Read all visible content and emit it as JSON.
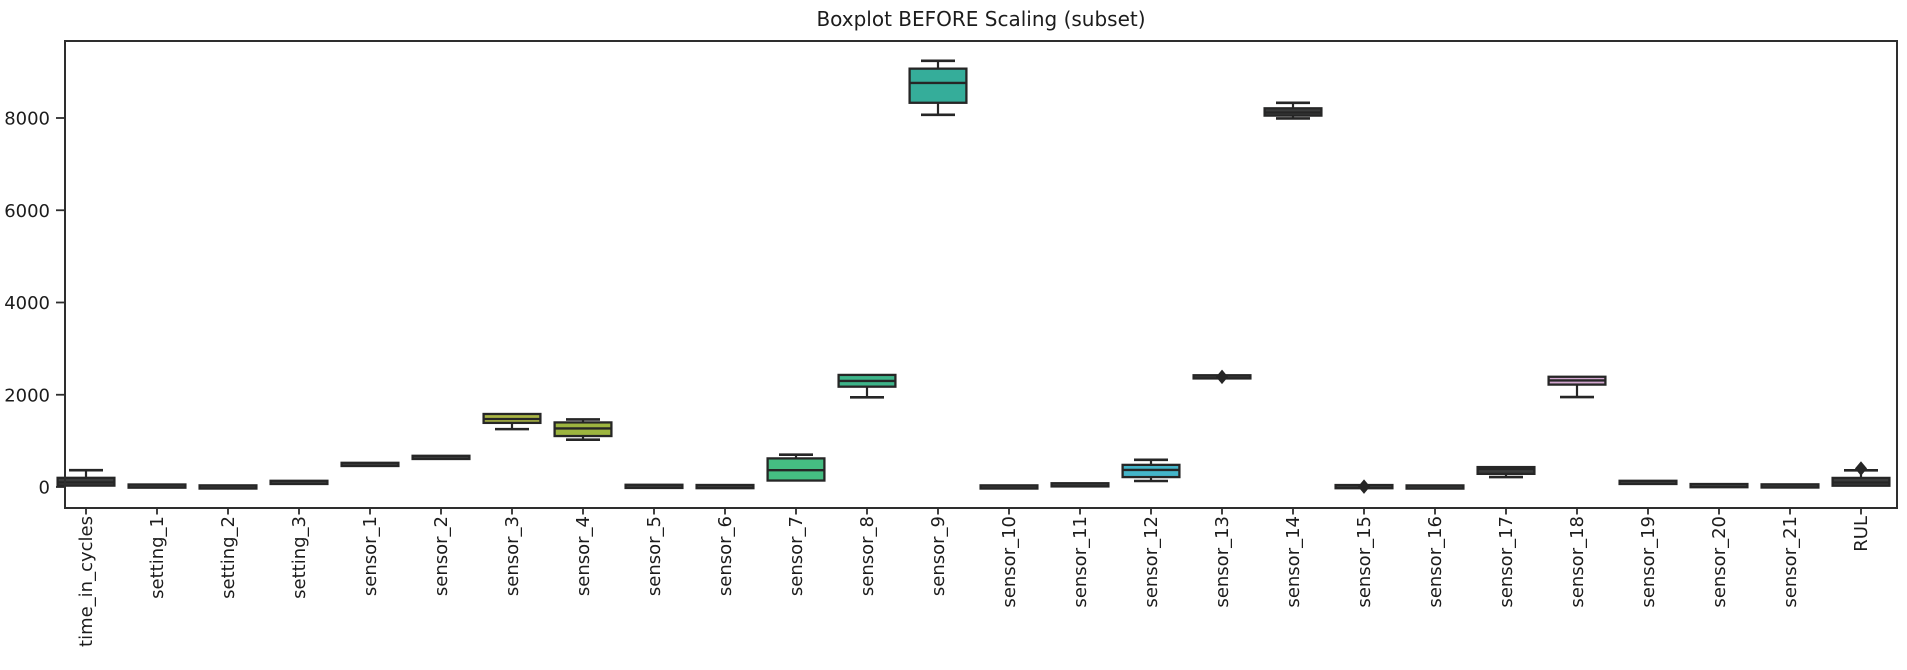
{
  "figure": {
    "background": "#ffffff",
    "axis_color": "#2e2e2e",
    "box_edge_color": "#262626",
    "flat_box_color": "#3b3c3c",
    "text_color": "#1c1c1c"
  },
  "chart_data": {
    "type": "boxplot",
    "title": "Boxplot BEFORE Scaling (subset)",
    "xlabel": "",
    "ylabel": "",
    "ylim": [
      -455,
      9670
    ],
    "yticks": [
      0,
      2000,
      4000,
      6000,
      8000
    ],
    "grid": false,
    "legend": "none",
    "categories": [
      "time_in_cycles",
      "setting_1",
      "setting_2",
      "setting_3",
      "sensor_1",
      "sensor_2",
      "sensor_3",
      "sensor_4",
      "sensor_5",
      "sensor_6",
      "sensor_7",
      "sensor_8",
      "sensor_9",
      "sensor_10",
      "sensor_11",
      "sensor_12",
      "sensor_13",
      "sensor_14",
      "sensor_15",
      "sensor_16",
      "sensor_17",
      "sensor_18",
      "sensor_19",
      "sensor_20",
      "sensor_21",
      "RUL"
    ],
    "series": [
      {
        "name": "time_in_cycles",
        "whislo": 1,
        "q1": 30,
        "med": 100,
        "q3": 199,
        "whishi": 365,
        "fliers": [],
        "color": "#3b3c3c"
      },
      {
        "name": "setting_1",
        "whislo": 0,
        "q1": 14,
        "med": 20,
        "q3": 26,
        "whishi": 40,
        "fliers": [],
        "color": "#3b3c3c"
      },
      {
        "name": "setting_2",
        "whislo": 0,
        "q1": 0,
        "med": 1,
        "q3": 2,
        "whishi": 2,
        "fliers": [],
        "color": "#3b3c3c"
      },
      {
        "name": "setting_3",
        "whislo": 100,
        "q1": 100,
        "med": 100,
        "q3": 100,
        "whishi": 100,
        "fliers": [],
        "color": "#3b3c3c"
      },
      {
        "name": "sensor_1",
        "whislo": 490,
        "q1": 490,
        "med": 490,
        "q3": 490,
        "whishi": 490,
        "fliers": [],
        "color": "#3b3c3c"
      },
      {
        "name": "sensor_2",
        "whislo": 640,
        "q1": 640,
        "med": 642,
        "q3": 644,
        "whishi": 645,
        "fliers": [],
        "color": "#3b3c3c"
      },
      {
        "name": "sensor_3",
        "whislo": 1255,
        "q1": 1390,
        "med": 1475,
        "q3": 1583,
        "whishi": 1625,
        "fliers": [],
        "color": "#a9b544"
      },
      {
        "name": "sensor_4",
        "whislo": 1025,
        "q1": 1105,
        "med": 1270,
        "q3": 1400,
        "whishi": 1465,
        "fliers": [],
        "color": "#9db53f"
      },
      {
        "name": "sensor_5",
        "whislo": 14,
        "q1": 14,
        "med": 14,
        "q3": 14,
        "whishi": 14,
        "fliers": [],
        "color": "#3b3c3c"
      },
      {
        "name": "sensor_6",
        "whislo": 9,
        "q1": 9,
        "med": 9,
        "q3": 9,
        "whishi": 9,
        "fliers": [],
        "color": "#3b3c3c"
      },
      {
        "name": "sensor_7",
        "whislo": 95,
        "q1": 140,
        "med": 365,
        "q3": 620,
        "whishi": 700,
        "fliers": [],
        "color": "#45bd82"
      },
      {
        "name": "sensor_8",
        "whislo": 1945,
        "q1": 2175,
        "med": 2300,
        "q3": 2430,
        "whishi": 2470,
        "fliers": [],
        "color": "#3db489"
      },
      {
        "name": "sensor_9",
        "whislo": 8070,
        "q1": 8330,
        "med": 8760,
        "q3": 9070,
        "whishi": 9240,
        "fliers": [],
        "color": "#35ad9a"
      },
      {
        "name": "sensor_10",
        "whislo": 1,
        "q1": 1,
        "med": 1,
        "q3": 1,
        "whishi": 1,
        "fliers": [],
        "color": "#3b3c3c"
      },
      {
        "name": "sensor_11",
        "whislo": 42,
        "q1": 44,
        "med": 47,
        "q3": 50,
        "whishi": 52,
        "fliers": [],
        "color": "#3b3c3c"
      },
      {
        "name": "sensor_12",
        "whislo": 130,
        "q1": 215,
        "med": 370,
        "q3": 480,
        "whishi": 590,
        "fliers": [],
        "color": "#44b5c9"
      },
      {
        "name": "sensor_13",
        "whislo": 2388,
        "q1": 2388,
        "med": 2388,
        "q3": 2388,
        "whishi": 2388,
        "fliers": [
          2388
        ],
        "color": "#3b3c3c"
      },
      {
        "name": "sensor_14",
        "whislo": 7990,
        "q1": 8052,
        "med": 8120,
        "q3": 8210,
        "whishi": 8330,
        "fliers": [],
        "color": "#3b3c3c"
      },
      {
        "name": "sensor_15",
        "whislo": 8,
        "q1": 8,
        "med": 8,
        "q3": 8,
        "whishi": 8,
        "fliers": [
          8
        ],
        "color": "#3b3c3c"
      },
      {
        "name": "sensor_16",
        "whislo": 0,
        "q1": 0,
        "med": 0,
        "q3": 0,
        "whishi": 0,
        "fliers": [],
        "color": "#3b3c3c"
      },
      {
        "name": "sensor_17",
        "whislo": 215,
        "q1": 285,
        "med": 392,
        "q3": 432,
        "whishi": 440,
        "fliers": [],
        "color": "#3b3c3c"
      },
      {
        "name": "sensor_18",
        "whislo": 1950,
        "q1": 2220,
        "med": 2310,
        "q3": 2390,
        "whishi": 2400,
        "fliers": [],
        "color": "#d3a6d0"
      },
      {
        "name": "sensor_19",
        "whislo": 100,
        "q1": 100,
        "med": 100,
        "q3": 100,
        "whishi": 100,
        "fliers": [],
        "color": "#3b3c3c"
      },
      {
        "name": "sensor_20",
        "whislo": 20,
        "q1": 25,
        "med": 30,
        "q3": 34,
        "whishi": 39,
        "fliers": [],
        "color": "#3b3c3c"
      },
      {
        "name": "sensor_21",
        "whislo": 23,
        "q1": 23,
        "med": 23,
        "q3": 23,
        "whishi": 23,
        "fliers": [],
        "color": "#3b3c3c"
      },
      {
        "name": "RUL",
        "whislo": 0,
        "q1": 28,
        "med": 98,
        "q3": 197,
        "whishi": 361,
        "fliers": [
          400
        ],
        "color": "#3b3c3c"
      }
    ]
  }
}
